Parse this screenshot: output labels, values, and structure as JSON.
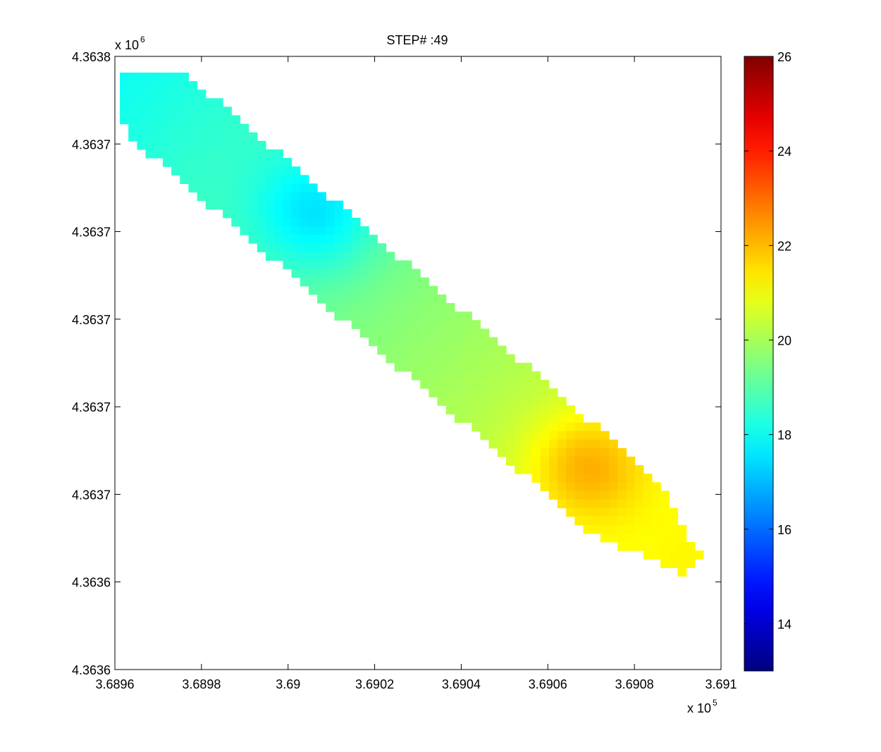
{
  "chart_data": {
    "type": "heatmap",
    "title": "STEP# :49",
    "xlabel": "",
    "ylabel": "",
    "x_exponent_label": "x 10",
    "x_exponent_power": "5",
    "y_exponent_label": "x 10",
    "y_exponent_power": "6",
    "xlim": [
      3.6896,
      3.691
    ],
    "x_ticks": [
      "3.6896",
      "3.6898",
      "3.69",
      "3.6902",
      "3.6904",
      "3.6906",
      "3.6908",
      "3.691"
    ],
    "y_ticks": [
      "4.3638",
      "4.3637",
      "4.3637",
      "4.3637",
      "4.3637",
      "4.3637",
      "4.3636",
      "4.3636"
    ],
    "colormap": "jet",
    "clim": [
      13,
      26
    ],
    "colorbar_ticks": [
      "26",
      "24",
      "22",
      "20",
      "18",
      "16",
      "14"
    ],
    "colorbar_tick_values": [
      26,
      24,
      22,
      20,
      18,
      16,
      14
    ],
    "field": {
      "grid_cols": 68,
      "grid_rows": 64,
      "band_start_fraction": [
        0.0,
        0.0
      ],
      "band_end_fraction": [
        0.96,
        0.88
      ],
      "band_half_width_fraction": 0.075,
      "background_value": 19.2,
      "trend": {
        "start": 18.0,
        "end": 21.2
      },
      "features": [
        {
          "kind": "min",
          "at_fraction": [
            0.34,
            0.26
          ],
          "value": 16.5
        },
        {
          "kind": "max",
          "at_fraction": [
            0.8,
            0.72
          ],
          "value": 22.7
        }
      ],
      "range_min": 16.4,
      "range_max": 22.9
    }
  }
}
